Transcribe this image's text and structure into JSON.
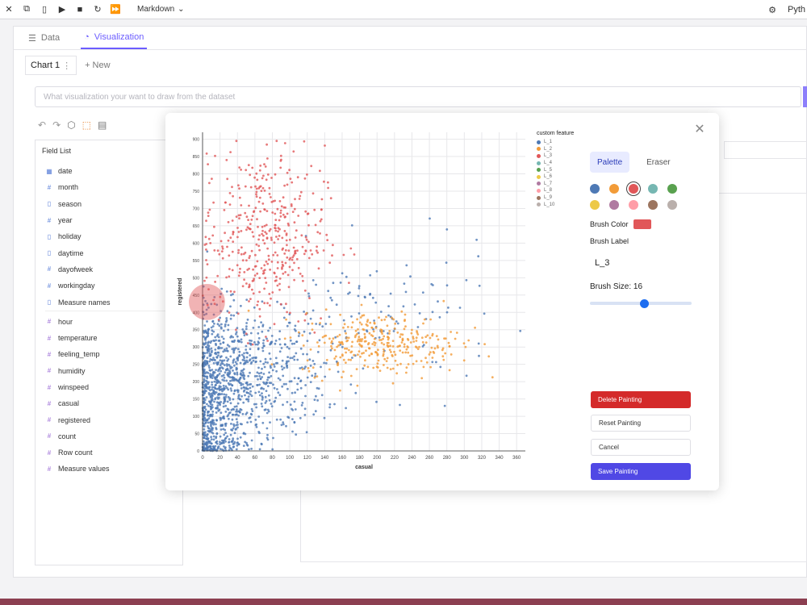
{
  "toolbar": {
    "cell_type": "Markdown",
    "icons": [
      "close-icon",
      "copy-icon",
      "paste-icon",
      "run-icon",
      "stop-icon",
      "restart-icon",
      "fast-forward-icon"
    ],
    "kernel": "Pyth"
  },
  "tabs": [
    {
      "label": "Data",
      "icon": "database-icon",
      "active": false
    },
    {
      "label": "Visualization",
      "icon": "chart-icon",
      "active": true
    }
  ],
  "chart_tabs": {
    "current": "Chart 1",
    "new": "+ New"
  },
  "ask": {
    "placeholder": "What visualization your want to draw from the dataset"
  },
  "field_panel": {
    "title": "Field List",
    "dimensions": [
      {
        "name": "date",
        "icon": "calendar-icon"
      },
      {
        "name": "month",
        "icon": "hash-icon"
      },
      {
        "name": "season",
        "icon": "text-icon"
      },
      {
        "name": "year",
        "icon": "hash-icon"
      },
      {
        "name": "holiday",
        "icon": "text-icon"
      },
      {
        "name": "daytime",
        "icon": "text-icon"
      },
      {
        "name": "dayofweek",
        "icon": "hash-icon"
      },
      {
        "name": "workingday",
        "icon": "hash-icon"
      },
      {
        "name": "Measure names",
        "icon": "text-icon"
      }
    ],
    "measures": [
      {
        "name": "hour",
        "icon": "hash-icon"
      },
      {
        "name": "temperature",
        "icon": "hash-icon"
      },
      {
        "name": "feeling_temp",
        "icon": "hash-icon"
      },
      {
        "name": "humidity",
        "icon": "hash-icon"
      },
      {
        "name": "winspeed",
        "icon": "hash-icon"
      },
      {
        "name": "casual",
        "icon": "hash-icon"
      },
      {
        "name": "registered",
        "icon": "hash-icon"
      },
      {
        "name": "count",
        "icon": "hash-icon"
      },
      {
        "name": "Row count",
        "icon": "hash-icon"
      },
      {
        "name": "Measure values",
        "icon": "hash-icon"
      }
    ]
  },
  "modal": {
    "legend": {
      "title": "custom feature",
      "items": [
        {
          "label": "L_1",
          "color": "#4e79b5"
        },
        {
          "label": "L_2",
          "color": "#f29b38"
        },
        {
          "label": "L_3",
          "color": "#e15759"
        },
        {
          "label": "L_4",
          "color": "#76b7b2"
        },
        {
          "label": "L_5",
          "color": "#59a14f"
        },
        {
          "label": "L_6",
          "color": "#edc948"
        },
        {
          "label": "L_7",
          "color": "#b07aa1"
        },
        {
          "label": "L_8",
          "color": "#ff9da7"
        },
        {
          "label": "L_9",
          "color": "#9c755f"
        },
        {
          "label": "L_10",
          "color": "#bab0ac"
        }
      ]
    },
    "modes": [
      "Palette",
      "Eraser"
    ],
    "palette": [
      "#4e79b5",
      "#f29b38",
      "#e15759",
      "#76b7b2",
      "#59a14f",
      "#edc948",
      "#b07aa1",
      "#ff9da7",
      "#9c755f",
      "#bab0ac"
    ],
    "selected_color_index": 2,
    "brush_color_label": "Brush Color",
    "brush_color": "#e15759",
    "brush_label_title": "Brush Label",
    "brush_label_value": "L_3",
    "brush_size_label": "Brush Size: 16",
    "brush_size": 16,
    "brush_size_max": 30,
    "buttons": {
      "delete": "Delete Painting",
      "reset": "Reset Painting",
      "cancel": "Cancel",
      "save": "Save Painting"
    }
  },
  "chart_data": {
    "type": "scatter",
    "xlabel": "casual",
    "ylabel": "registered",
    "xlim": [
      0,
      370
    ],
    "ylim": [
      0,
      920
    ],
    "xticks": [
      0,
      20,
      40,
      60,
      80,
      100,
      120,
      140,
      160,
      180,
      200,
      220,
      240,
      260,
      280,
      300,
      320,
      340,
      360
    ],
    "yticks": [
      0,
      50,
      100,
      150,
      200,
      250,
      300,
      350,
      400,
      450,
      500,
      550,
      600,
      650,
      700,
      750,
      800,
      850,
      900
    ],
    "grid": true,
    "series": [
      {
        "name": "L_1",
        "color": "#4e79b5"
      },
      {
        "name": "L_2",
        "color": "#f29b38"
      },
      {
        "name": "L_3",
        "color": "#e15759"
      }
    ],
    "clusters": [
      {
        "series": "L_1",
        "cx": 15,
        "cy": 150,
        "sx": 22,
        "sy": 130,
        "n": 700
      },
      {
        "series": "L_1",
        "cx": 60,
        "cy": 220,
        "sx": 40,
        "sy": 90,
        "n": 500
      },
      {
        "series": "L_1",
        "cx": 200,
        "cy": 380,
        "sx": 70,
        "sy": 100,
        "n": 120
      },
      {
        "series": "L_3",
        "cx": 70,
        "cy": 620,
        "sx": 35,
        "sy": 130,
        "n": 420
      },
      {
        "series": "L_2",
        "cx": 205,
        "cy": 310,
        "sx": 45,
        "sy": 45,
        "n": 320
      }
    ],
    "brush": {
      "x": 5,
      "y": 430,
      "radius": 16
    }
  }
}
